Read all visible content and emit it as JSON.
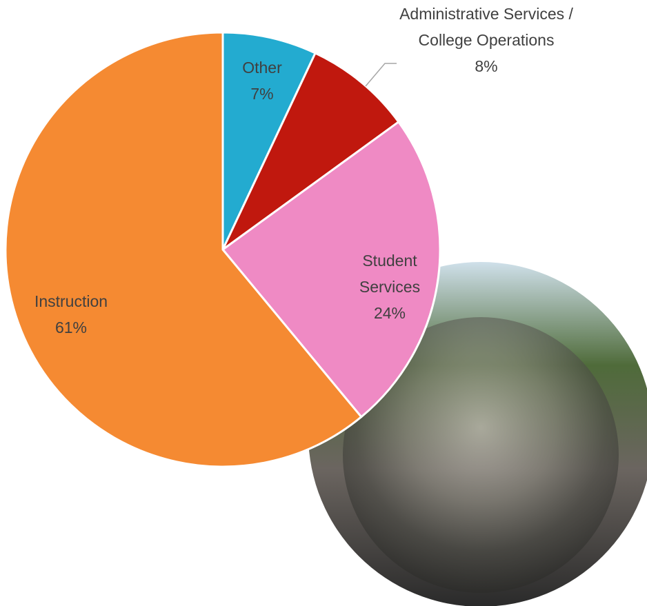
{
  "chart_data": {
    "type": "pie",
    "categories": [
      "Other",
      "Administrative Services / College Operations",
      "Student Services",
      "Instruction"
    ],
    "values": [
      7,
      8,
      24,
      61
    ],
    "value_labels": [
      "7%",
      "8%",
      "24%",
      "61%"
    ],
    "colors": [
      "#23abd0",
      "#c0180e",
      "#ef8ac4",
      "#f58a32"
    ]
  }
}
